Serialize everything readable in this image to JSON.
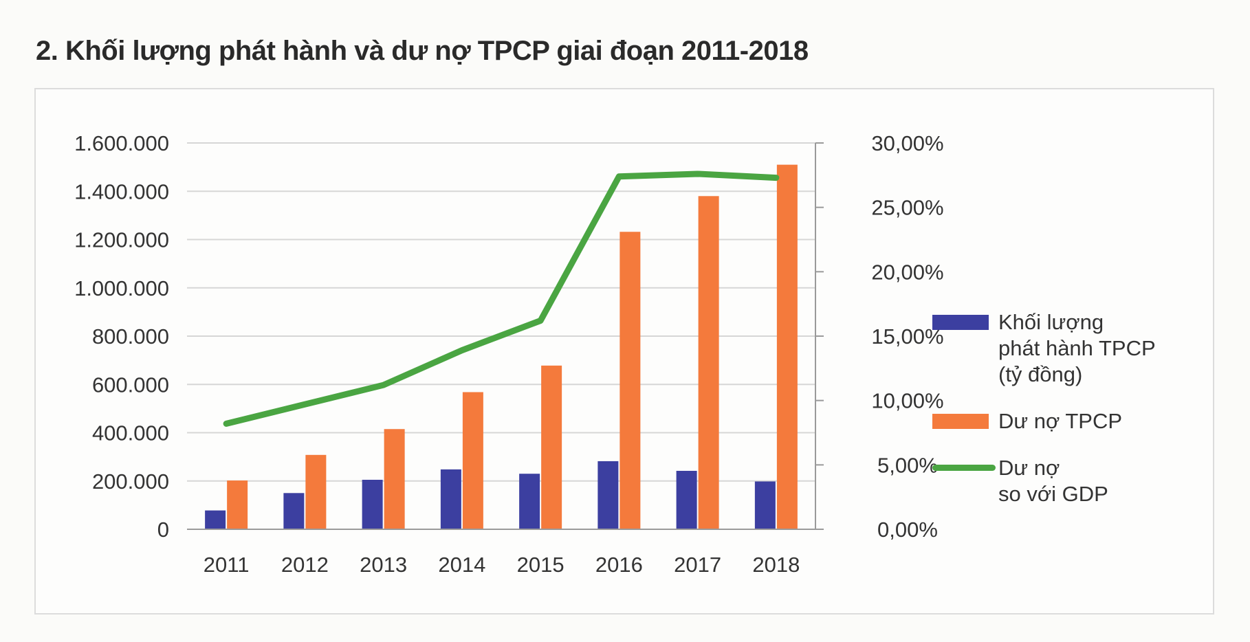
{
  "title": "2. Khối lượng phát hành và dư nợ TPCP giai đoạn 2011-2018",
  "legend": {
    "issuance": "Khối lượng\nphát hành TPCP\n(tỷ đồng)",
    "debt": "Dư nợ TPCP",
    "ratio": "Dư nợ\nso với GDP"
  },
  "colors": {
    "issuance": "#3c3fa0",
    "debt": "#f47a3c",
    "ratio": "#4aa542",
    "grid": "#d6d6d6",
    "axis": "#9a9a9a"
  },
  "chart_data": {
    "type": "bar",
    "categories": [
      "2011",
      "2012",
      "2013",
      "2014",
      "2015",
      "2016",
      "2017",
      "2018"
    ],
    "series": [
      {
        "name": "Khối lượng phát hành TPCP (tỷ đồng)",
        "type": "bar",
        "axis": "left",
        "values": [
          78000,
          150000,
          205000,
          248000,
          230000,
          282000,
          242000,
          198000
        ]
      },
      {
        "name": "Dư nợ TPCP",
        "type": "bar",
        "axis": "left",
        "values": [
          202000,
          308000,
          415000,
          568000,
          678000,
          1232000,
          1380000,
          1510000
        ]
      },
      {
        "name": "Dư nợ so với GDP",
        "type": "line",
        "axis": "right",
        "values": [
          8.2,
          9.7,
          11.2,
          13.9,
          16.2,
          27.4,
          27.6,
          27.3
        ]
      }
    ],
    "y_left": {
      "min": 0,
      "max": 1600000,
      "ticks": [
        0,
        200000,
        400000,
        600000,
        800000,
        1000000,
        1200000,
        1400000,
        1600000
      ],
      "tick_labels": [
        "0",
        "200.000",
        "400.000",
        "600.000",
        "800.000",
        "1.000.000",
        "1.200.000",
        "1.400.000",
        "1.600.000"
      ]
    },
    "y_right": {
      "min": 0,
      "max": 30,
      "ticks": [
        0,
        5,
        10,
        15,
        20,
        25,
        30
      ],
      "tick_labels": [
        "0,00%",
        "5,00%",
        "10,00%",
        "15,00%",
        "20,00%",
        "25,00%",
        "30,00%"
      ]
    },
    "grid": true,
    "legend_position": "right"
  }
}
